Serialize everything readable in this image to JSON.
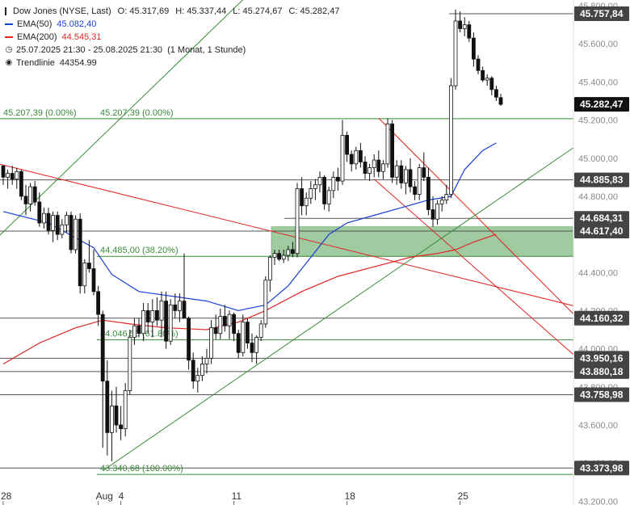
{
  "chart_data": {
    "type": "candlestick",
    "title": "Dow Jones (NYSE, Last)",
    "ohlc_readout": {
      "O": "45.317,69",
      "H": "45.337,44",
      "L": "45.274,67",
      "C": "45.282,47"
    },
    "legend": [
      {
        "label": "EMA(50)",
        "value": "45.082,40",
        "color": "#1a3fd6"
      },
      {
        "label": "EMA(200)",
        "value": "44.545,31",
        "color": "#e02424"
      },
      {
        "label": "25.07.2025 21:30 - 25.08.2025 21:30",
        "value": "(1 Monat, 1 Stunde)",
        "icon": "clock-icon"
      },
      {
        "label": "Trendlinie",
        "value": "44354.99",
        "icon": "trendline-icon"
      }
    ],
    "x_tick_labels": [
      {
        "label": "28",
        "slot": 0
      },
      {
        "label": "Aug",
        "slot": 21
      },
      {
        "label": "4",
        "slot": 26
      },
      {
        "label": "11",
        "slot": 51
      },
      {
        "label": "18",
        "slot": 76
      },
      {
        "label": "25",
        "slot": 101
      }
    ],
    "y_tick_labels": [
      "45.800,00",
      "45.600,00",
      "45.400,00",
      "45.200,00",
      "45.000,00",
      "44.800,00",
      "44.600,00",
      "44.400,00",
      "44.200,00",
      "44.000,00",
      "43.800,00",
      "43.600,00",
      "43.400,00",
      "43.200,00"
    ],
    "ylim": [
      43180,
      45830
    ],
    "grid": false,
    "price_levels": [
      {
        "value": 45757.84,
        "label": "45.757,84",
        "color": "#444444"
      },
      {
        "value": 45282.47,
        "label": "45.282,47",
        "color": "#111111"
      },
      {
        "value": 44885.83,
        "label": "44.885,83",
        "color": "#444444"
      },
      {
        "value": 44684.31,
        "label": "44.684,31",
        "color": "#444444"
      },
      {
        "value": 44617.4,
        "label": "44.617,40",
        "color": "#444444"
      },
      {
        "value": 44160.32,
        "label": "44.160,32",
        "color": "#444444"
      },
      {
        "value": 43950.16,
        "label": "43.950,16",
        "color": "#444444"
      },
      {
        "value": 43880.18,
        "label": "43.880,18",
        "color": "#444444"
      },
      {
        "value": 43758.98,
        "label": "43.758,98",
        "color": "#444444"
      },
      {
        "value": 43373.98,
        "label": "43.373,98",
        "color": "#444444"
      }
    ],
    "fibonacci": [
      {
        "value": 45207.39,
        "label": "45.207,39 (0.00%)"
      },
      {
        "value": 44485.0,
        "label": "44.485,00 (38.20%)"
      },
      {
        "value": 44046.5,
        "label": "44.046,50 (61.80%)"
      },
      {
        "value": 43340.68,
        "label": "43.340,68 (100.00%)"
      }
    ],
    "fib_left_label": "45.207,39 (0.00%)",
    "support_zone": [
      44485,
      44640
    ],
    "candles": [
      [
        44960,
        44960,
        44860,
        44900
      ],
      [
        44900,
        44940,
        44840,
        44920
      ],
      [
        44920,
        44960,
        44860,
        44890
      ],
      [
        44890,
        44950,
        44840,
        44930
      ],
      [
        44930,
        44940,
        44780,
        44800
      ],
      [
        44800,
        44860,
        44700,
        44760
      ],
      [
        44760,
        44870,
        44720,
        44850
      ],
      [
        44850,
        44880,
        44750,
        44770
      ],
      [
        44770,
        44820,
        44640,
        44660
      ],
      [
        44660,
        44740,
        44630,
        44710
      ],
      [
        44710,
        44740,
        44600,
        44620
      ],
      [
        44620,
        44720,
        44560,
        44700
      ],
      [
        44700,
        44720,
        44570,
        44600
      ],
      [
        44600,
        44680,
        44580,
        44650
      ],
      [
        44650,
        44720,
        44610,
        44700
      ],
      [
        44700,
        44720,
        44500,
        44520
      ],
      [
        44520,
        44700,
        44500,
        44680
      ],
      [
        44680,
        44710,
        44290,
        44330
      ],
      [
        44330,
        44470,
        44290,
        44450
      ],
      [
        44450,
        44570,
        44400,
        44420
      ],
      [
        44420,
        44520,
        44280,
        44300
      ],
      [
        44300,
        44330,
        44120,
        44180
      ],
      [
        44180,
        44200,
        43480,
        43830
      ],
      [
        43830,
        43940,
        43440,
        43560
      ],
      [
        43560,
        43780,
        43410,
        43700
      ],
      [
        43700,
        43800,
        43560,
        43600
      ],
      [
        43600,
        43700,
        43520,
        43580
      ],
      [
        43580,
        43820,
        43540,
        43780
      ],
      [
        43780,
        44100,
        43760,
        44060
      ],
      [
        44060,
        44160,
        44020,
        44120
      ],
      [
        44120,
        44160,
        44060,
        44080
      ],
      [
        44080,
        44240,
        44040,
        44200
      ],
      [
        44200,
        44240,
        44080,
        44140
      ],
      [
        44140,
        44260,
        44060,
        44200
      ],
      [
        44200,
        44270,
        44120,
        44150
      ],
      [
        44150,
        44300,
        44060,
        44250
      ],
      [
        44250,
        44300,
        44000,
        44040
      ],
      [
        44040,
        44260,
        44020,
        44230
      ],
      [
        44230,
        44290,
        44160,
        44200
      ],
      [
        44200,
        44290,
        44140,
        44250
      ],
      [
        44250,
        44500,
        44180,
        44160
      ],
      [
        44160,
        44170,
        43890,
        43940
      ],
      [
        43940,
        43980,
        43790,
        43830
      ],
      [
        43830,
        43900,
        43770,
        43860
      ],
      [
        43860,
        43960,
        43830,
        43920
      ],
      [
        43920,
        44000,
        43870,
        43950
      ],
      [
        43950,
        44150,
        43920,
        44110
      ],
      [
        44110,
        44180,
        44050,
        44080
      ],
      [
        44080,
        44210,
        44050,
        44170
      ],
      [
        44170,
        44230,
        44090,
        44120
      ],
      [
        44120,
        44200,
        44050,
        44180
      ],
      [
        44180,
        44190,
        44040,
        44080
      ],
      [
        44080,
        44100,
        43950,
        43980
      ],
      [
        43980,
        44180,
        43960,
        44140
      ],
      [
        44140,
        44160,
        44000,
        44030
      ],
      [
        44030,
        44080,
        43930,
        43980
      ],
      [
        43980,
        44070,
        43920,
        44060
      ],
      [
        44060,
        44150,
        44040,
        44130
      ],
      [
        44130,
        44380,
        44110,
        44360
      ],
      [
        44360,
        44490,
        44300,
        44480
      ],
      [
        44480,
        44520,
        44440,
        44500
      ],
      [
        44500,
        44520,
        44460,
        44470
      ],
      [
        44470,
        44520,
        44450,
        44490
      ],
      [
        44490,
        44540,
        44460,
        44520
      ],
      [
        44520,
        44560,
        44480,
        44500
      ],
      [
        44500,
        44870,
        44480,
        44840
      ],
      [
        44840,
        44900,
        44700,
        44750
      ],
      [
        44750,
        44820,
        44700,
        44790
      ],
      [
        44790,
        44880,
        44760,
        44840
      ],
      [
        44840,
        44890,
        44780,
        44860
      ],
      [
        44860,
        44930,
        44820,
        44900
      ],
      [
        44900,
        44910,
        44730,
        44760
      ],
      [
        44760,
        44850,
        44720,
        44830
      ],
      [
        44830,
        44930,
        44790,
        44900
      ],
      [
        44900,
        44950,
        44830,
        44880
      ],
      [
        44880,
        45200,
        44860,
        45120
      ],
      [
        45120,
        45140,
        44980,
        45020
      ],
      [
        45020,
        45040,
        44930,
        44970
      ],
      [
        44970,
        45060,
        44940,
        45040
      ],
      [
        45040,
        45080,
        44950,
        44980
      ],
      [
        44980,
        45010,
        44890,
        44920
      ],
      [
        44920,
        44970,
        44880,
        44950
      ],
      [
        44950,
        45020,
        44900,
        44990
      ],
      [
        44990,
        45040,
        44900,
        44930
      ],
      [
        44930,
        44990,
        44890,
        44970
      ],
      [
        44970,
        45210,
        44950,
        45180
      ],
      [
        45180,
        45200,
        44870,
        44900
      ],
      [
        44900,
        44990,
        44860,
        44960
      ],
      [
        44960,
        44990,
        44840,
        44870
      ],
      [
        44870,
        44960,
        44810,
        44940
      ],
      [
        44940,
        45000,
        44820,
        44850
      ],
      [
        44850,
        44880,
        44780,
        44810
      ],
      [
        44810,
        44970,
        44780,
        44950
      ],
      [
        44950,
        45030,
        44880,
        44900
      ],
      [
        44900,
        44950,
        44700,
        44730
      ],
      [
        44730,
        44800,
        44640,
        44680
      ],
      [
        44680,
        44780,
        44650,
        44760
      ],
      [
        44760,
        44800,
        44720,
        44780
      ],
      [
        44780,
        44860,
        44760,
        44810
      ],
      [
        44810,
        45420,
        44790,
        45380
      ],
      [
        45380,
        45780,
        45360,
        45720
      ],
      [
        45720,
        45770,
        45660,
        45680
      ],
      [
        45680,
        45740,
        45640,
        45700
      ],
      [
        45700,
        45720,
        45610,
        45630
      ],
      [
        45630,
        45660,
        45480,
        45520
      ],
      [
        45520,
        45540,
        45440,
        45460
      ],
      [
        45460,
        45480,
        45400,
        45410
      ],
      [
        45410,
        45440,
        45380,
        45420
      ],
      [
        45420,
        45430,
        45330,
        45360
      ],
      [
        45360,
        45380,
        45300,
        45320
      ],
      [
        45317.69,
        45337.44,
        45274.67,
        45282.47
      ]
    ],
    "ema50": [
      [
        0,
        44720
      ],
      [
        10,
        44660
      ],
      [
        20,
        44530
      ],
      [
        24,
        44390
      ],
      [
        30,
        44300
      ],
      [
        45,
        44250
      ],
      [
        52,
        44200
      ],
      [
        58,
        44230
      ],
      [
        63,
        44330
      ],
      [
        67,
        44450
      ],
      [
        72,
        44600
      ],
      [
        76,
        44660
      ],
      [
        82,
        44700
      ],
      [
        88,
        44740
      ],
      [
        94,
        44780
      ],
      [
        99,
        44800
      ],
      [
        102,
        44940
      ],
      [
        106,
        45040
      ],
      [
        109,
        45080
      ]
    ],
    "ema200": [
      [
        0,
        43920
      ],
      [
        8,
        44030
      ],
      [
        16,
        44110
      ],
      [
        22,
        44150
      ],
      [
        28,
        44130
      ],
      [
        36,
        44110
      ],
      [
        45,
        44100
      ],
      [
        52,
        44140
      ],
      [
        58,
        44200
      ],
      [
        66,
        44300
      ],
      [
        74,
        44380
      ],
      [
        82,
        44430
      ],
      [
        90,
        44480
      ],
      [
        96,
        44500
      ],
      [
        100,
        44520
      ],
      [
        104,
        44560
      ],
      [
        109,
        44600
      ]
    ],
    "trendlines": [
      {
        "color": "#e02424",
        "from": [
          -1,
          44970
        ],
        "to": [
          127,
          44220
        ]
      },
      {
        "color": "#e02424",
        "from": [
          83,
          45210
        ],
        "to": [
          127,
          44160
        ]
      },
      {
        "color": "#e02424",
        "from": [
          82,
          44890
        ],
        "to": [
          127,
          43950
        ]
      },
      {
        "color": "#3a8a3a",
        "from": [
          -1,
          44590
        ],
        "to": [
          96,
          46820
        ]
      },
      {
        "color": "#3a8a3a",
        "from": [
          22,
          43360
        ],
        "to": [
          127,
          45070
        ]
      }
    ]
  }
}
